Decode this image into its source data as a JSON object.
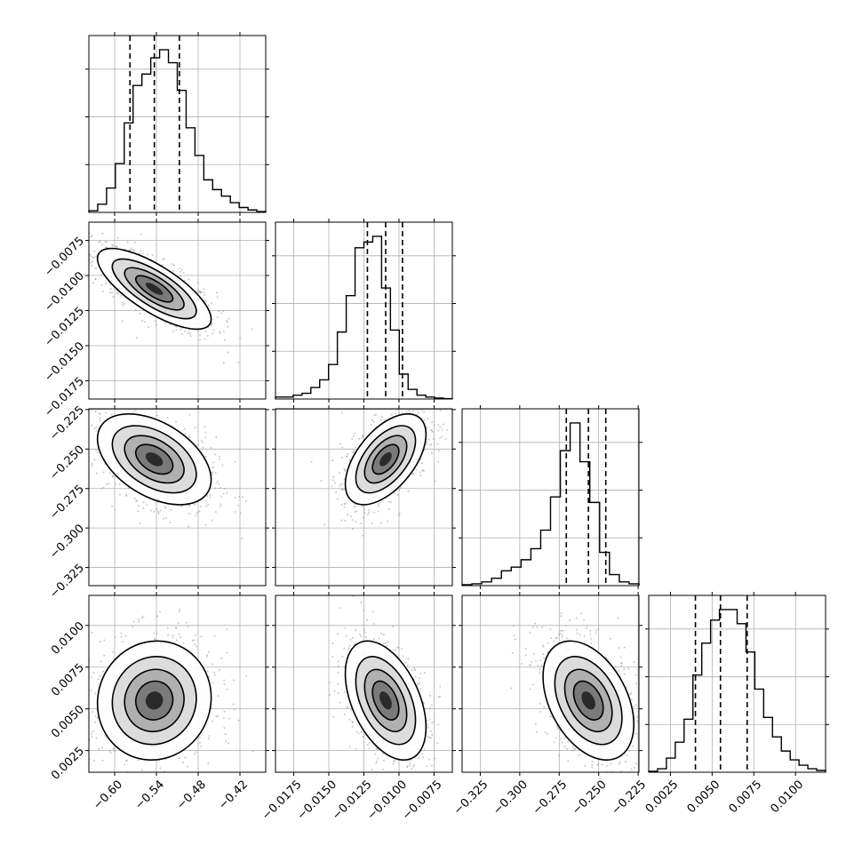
{
  "chart_data": {
    "type": "corner",
    "grid": true,
    "parameters": [
      {
        "ticks": [
          -0.6,
          -0.54,
          -0.48,
          -0.42
        ],
        "tick_labels": [
          "−0.60",
          "−0.54",
          "−0.48",
          "−0.42"
        ],
        "range": [
          -0.637,
          -0.383
        ],
        "quantiles": [
          -0.578,
          -0.543,
          -0.507
        ],
        "histogram_bins": [
          0.01,
          0.05,
          0.15,
          0.3,
          0.55,
          0.78,
          0.85,
          0.95,
          1.0,
          0.92,
          0.75,
          0.52,
          0.35,
          0.2,
          0.14,
          0.1,
          0.06,
          0.03,
          0.015,
          0.005
        ]
      },
      {
        "ticks": [
          -0.0175,
          -0.015,
          -0.0125,
          -0.01,
          -0.0075
        ],
        "tick_labels": [
          "−0.0175",
          "−0.0150",
          "−0.0125",
          "−0.0100",
          "−0.0075"
        ],
        "y_tick_labels": [
          "−0.0075",
          "−0.0100",
          "−0.0125",
          "−0.0150",
          "−0.0175"
        ],
        "range": [
          -0.0188,
          -0.0062
        ],
        "quantiles": [
          -0.01225,
          -0.01095,
          -0.00975
        ],
        "histogram_bins": [
          0.01,
          0.01,
          0.02,
          0.03,
          0.06,
          0.1,
          0.18,
          0.35,
          0.54,
          0.79,
          0.82,
          0.85,
          0.58,
          0.36,
          0.13,
          0.05,
          0.02,
          0.01,
          0.005,
          0.002
        ]
      },
      {
        "ticks": [
          -0.325,
          -0.3,
          -0.275,
          -0.25,
          -0.225
        ],
        "tick_labels": [
          "−0.325",
          "−0.300",
          "−0.275",
          "−0.250",
          "−0.225"
        ],
        "y_tick_labels": [
          "−0.225",
          "−0.250",
          "−0.275",
          "−0.300",
          "−0.325"
        ],
        "range": [
          -0.3365,
          -0.2245
        ],
        "quantiles": [
          -0.2705,
          -0.2565,
          -0.2455
        ],
        "histogram_bins": [
          0.005,
          0.01,
          0.02,
          0.04,
          0.08,
          0.1,
          0.14,
          0.2,
          0.3,
          0.48,
          0.73,
          0.88,
          0.67,
          0.45,
          0.18,
          0.06,
          0.02,
          0.01
        ]
      },
      {
        "ticks": [
          0.0025,
          0.005,
          0.0075,
          0.01
        ],
        "tick_labels": [
          "0.0025",
          "0.0050",
          "0.0075",
          "0.0100"
        ],
        "y_tick_labels": [
          "0.0100",
          "0.0075",
          "0.0050",
          "0.0025"
        ],
        "range": [
          0.0012,
          0.0118
        ],
        "quantiles": [
          0.004,
          0.0055,
          0.0071
        ],
        "histogram_bins": [
          0.005,
          0.02,
          0.08,
          0.17,
          0.3,
          0.55,
          0.73,
          0.86,
          0.92,
          0.92,
          0.84,
          0.68,
          0.47,
          0.31,
          0.2,
          0.12,
          0.07,
          0.04,
          0.02,
          0.01
        ]
      }
    ],
    "correlations": {
      "1-0": -0.75,
      "2-0": -0.45,
      "2-1": 0.55,
      "3-0": 0.05,
      "3-1": -0.45,
      "3-2": -0.4
    }
  }
}
